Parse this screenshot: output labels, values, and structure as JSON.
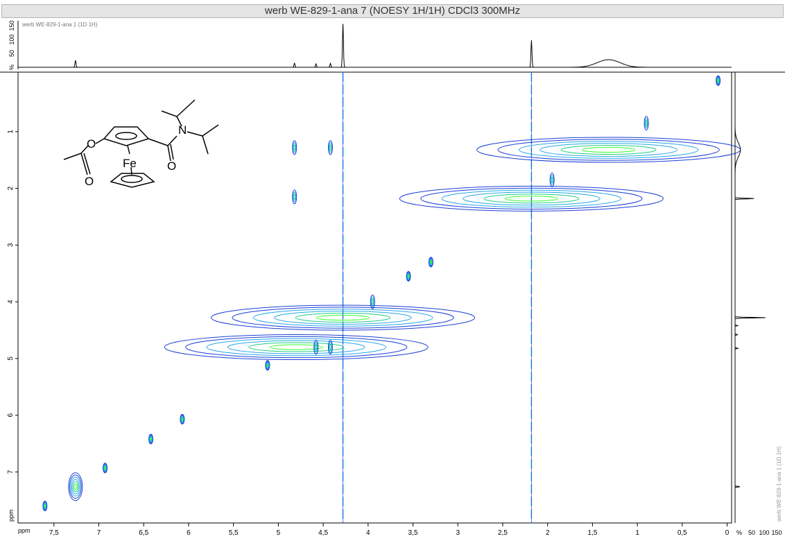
{
  "title": "werb WE-829-1-ana 7 (NOESY 1H/1H) CDCl3 300MHz",
  "chart_data": {
    "type": "heatmap",
    "subtype": "2D NMR NOESY contour plot",
    "top_projection_label": "werb WE-829-1-ana 1 (1D 1H)",
    "right_projection_label": "werb WE-829-1-ana 1 (1D 1H)",
    "x_unit_label": "ppm",
    "y_unit_label": "ppm",
    "percent_label": "%",
    "xlim": [
      7.9,
      -0.05
    ],
    "ylim": [
      -0.05,
      7.9
    ],
    "x_ticks": [
      "7,5",
      "7",
      "6,5",
      "6",
      "5,5",
      "5",
      "4,5",
      "4",
      "3,5",
      "3",
      "2,5",
      "2",
      "1,5",
      "1",
      "0,5",
      "0"
    ],
    "y_ticks": [
      "1",
      "2",
      "3",
      "4",
      "5",
      "6",
      "7"
    ],
    "projection_intensity_ticks": [
      "%",
      "50",
      "100",
      "150"
    ],
    "colors": {
      "outer": "#1a3fd6",
      "mid": "#27a7e6",
      "inner": "#1fce84",
      "core": "#33ff2e",
      "spectrum": "#000000",
      "axes": "#000000"
    },
    "projection_peaks": [
      {
        "ppm": 7.26,
        "height": 20
      },
      {
        "ppm": 4.82,
        "height": 12
      },
      {
        "ppm": 4.58,
        "height": 10
      },
      {
        "ppm": 4.42,
        "height": 11
      },
      {
        "ppm": 4.28,
        "height": 125
      },
      {
        "ppm": 2.18,
        "height": 78
      },
      {
        "ppm": 1.32,
        "height": 22,
        "broad": true
      }
    ],
    "diagonal_peaks": [
      {
        "ppm": 7.26,
        "size": "medium"
      },
      {
        "ppm": 7.6,
        "size": "small"
      },
      {
        "ppm": 6.93,
        "size": "small"
      },
      {
        "ppm": 6.42,
        "size": "small"
      },
      {
        "ppm": 6.07,
        "size": "small"
      },
      {
        "ppm": 5.12,
        "size": "small"
      },
      {
        "ppm": 4.8,
        "size": "large"
      },
      {
        "ppm": 4.28,
        "size": "large"
      },
      {
        "ppm": 3.55,
        "size": "small"
      },
      {
        "ppm": 3.3,
        "size": "small"
      },
      {
        "ppm": 2.18,
        "size": "large"
      },
      {
        "ppm": 1.32,
        "size": "large"
      },
      {
        "ppm": 0.1,
        "size": "small"
      }
    ],
    "cross_peaks": [
      {
        "x": 0.9,
        "y": 0.85
      },
      {
        "x": 4.82,
        "y": 1.28
      },
      {
        "x": 4.42,
        "y": 1.28
      },
      {
        "x": 1.95,
        "y": 1.85
      },
      {
        "x": 4.82,
        "y": 2.15
      },
      {
        "x": 3.95,
        "y": 4.0
      },
      {
        "x": 4.58,
        "y": 4.8
      },
      {
        "x": 4.42,
        "y": 4.8
      }
    ],
    "t1_noise_ppm": [
      4.28,
      2.18
    ],
    "structure_labels": {
      "iron": "Fe",
      "nitrogen": "N",
      "oxygen": "O"
    }
  }
}
